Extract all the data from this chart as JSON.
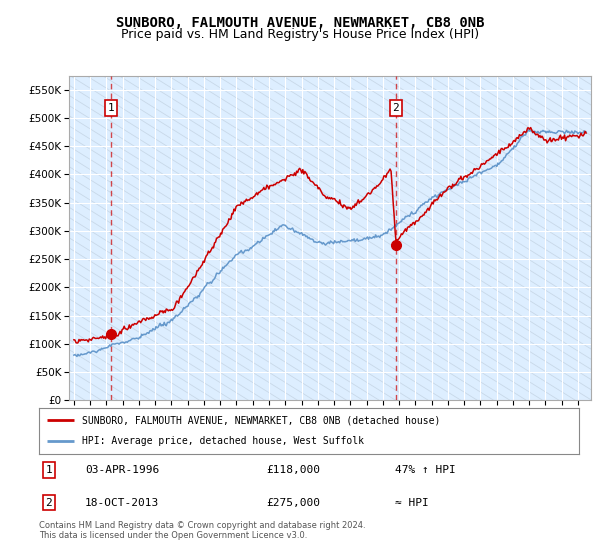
{
  "title": "SUNBORO, FALMOUTH AVENUE, NEWMARKET, CB8 0NB",
  "subtitle": "Price paid vs. HM Land Registry's House Price Index (HPI)",
  "ylabel_values": [
    0,
    50000,
    100000,
    150000,
    200000,
    250000,
    300000,
    350000,
    400000,
    450000,
    500000,
    550000
  ],
  "ylim": [
    0,
    575000
  ],
  "xmin": 1993.7,
  "xmax": 2025.8,
  "sale1_x": 1996.27,
  "sale1_y": 118000,
  "sale2_x": 2013.8,
  "sale2_y": 275000,
  "legend_line1": "SUNBORO, FALMOUTH AVENUE, NEWMARKET, CB8 0NB (detached house)",
  "legend_line2": "HPI: Average price, detached house, West Suffolk",
  "footer": "Contains HM Land Registry data © Crown copyright and database right 2024.\nThis data is licensed under the Open Government Licence v3.0.",
  "red_line_color": "#cc0000",
  "blue_line_color": "#6699cc",
  "background_color": "#ddeeff",
  "grid_color": "#ffffff",
  "vline_color": "#cc0000",
  "marker_color": "#cc0000",
  "title_fontsize": 10,
  "subtitle_fontsize": 9
}
